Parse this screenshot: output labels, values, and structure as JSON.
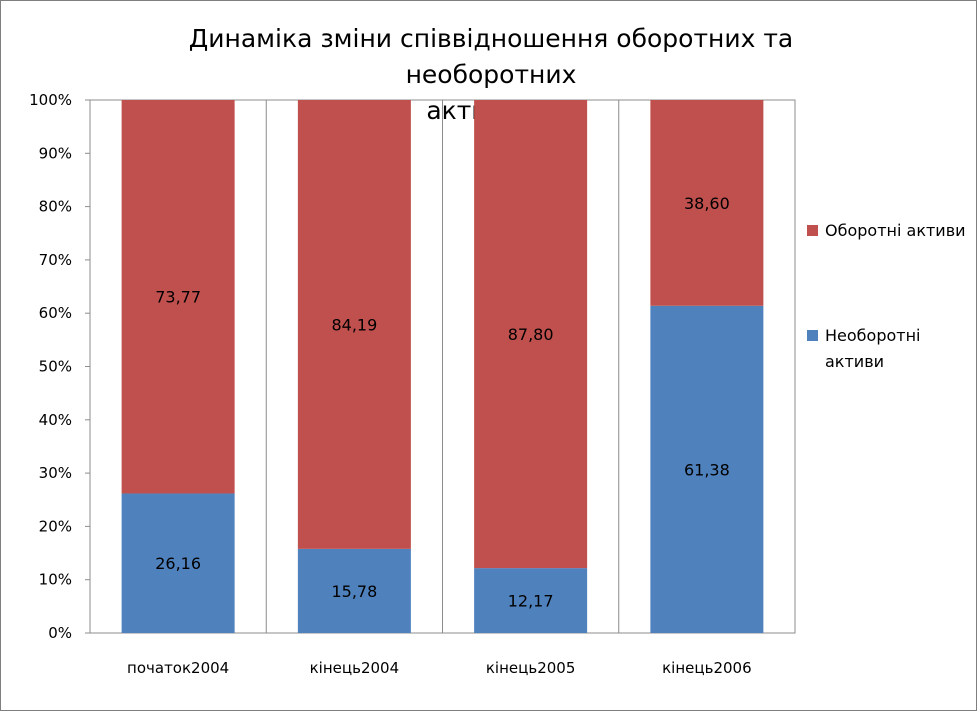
{
  "chart_data": {
    "type": "bar",
    "stacked": true,
    "percent": true,
    "title": "Динаміка зміни співвідношення оборотних та необоротних активів,%",
    "title_lines": [
      "Динаміка зміни співвідношення оборотних та необоротних",
      "активів,%"
    ],
    "categories": [
      "початок2004",
      "кінець2004",
      "кінець2005",
      "кінець2006"
    ],
    "series": [
      {
        "name": "Необоротні активи",
        "legend_lines": [
          "Необоротні",
          "активи"
        ],
        "color": "#4f81bd",
        "values": [
          26.16,
          15.78,
          12.17,
          61.38
        ],
        "labels": [
          "26,16",
          "15,78",
          "12,17",
          "61,38"
        ]
      },
      {
        "name": "Оборотні активи",
        "legend_lines": [
          "Оборотні активи"
        ],
        "color": "#c0504d",
        "values": [
          73.77,
          84.19,
          87.8,
          38.6
        ],
        "labels": [
          "73,77",
          "84,19",
          "87,80",
          "38,60"
        ]
      }
    ],
    "y_ticks": [
      "0%",
      "10%",
      "20%",
      "30%",
      "40%",
      "50%",
      "60%",
      "70%",
      "80%",
      "90%",
      "100%"
    ],
    "ylim": [
      0,
      100
    ],
    "grid": "vertical",
    "legend_position": "right"
  }
}
